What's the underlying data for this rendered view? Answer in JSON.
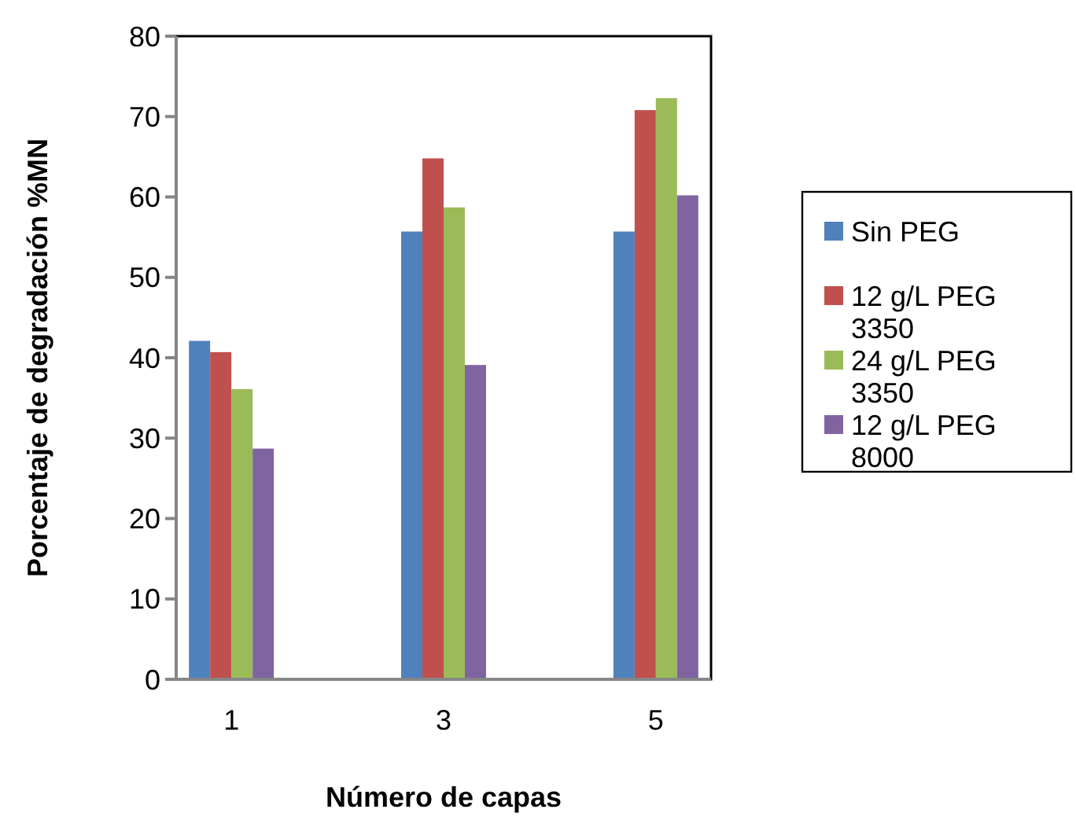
{
  "chart_data": {
    "type": "bar",
    "xlabel": "Número de capas",
    "ylabel": "Porcentaje de degradación %MN",
    "categories": [
      "1",
      "3",
      "5"
    ],
    "series": [
      {
        "name": "Sin PEG",
        "color": "#4f81bd",
        "values": [
          42.1,
          55.7,
          55.7
        ]
      },
      {
        "name": "12 g/L PEG 3350",
        "color": "#c0504d",
        "values": [
          40.7,
          64.8,
          70.8
        ]
      },
      {
        "name": "24 g/L PEG 3350",
        "color": "#9bbb59",
        "values": [
          36.1,
          58.7,
          72.3
        ]
      },
      {
        "name": "12 g/L PEG 8000",
        "color": "#8064a2",
        "values": [
          28.7,
          39.1,
          60.2
        ]
      }
    ],
    "ylim": [
      0,
      80
    ],
    "yticks": [
      0,
      10,
      20,
      30,
      40,
      50,
      60,
      70,
      80
    ],
    "grid": false,
    "legend": "right"
  }
}
